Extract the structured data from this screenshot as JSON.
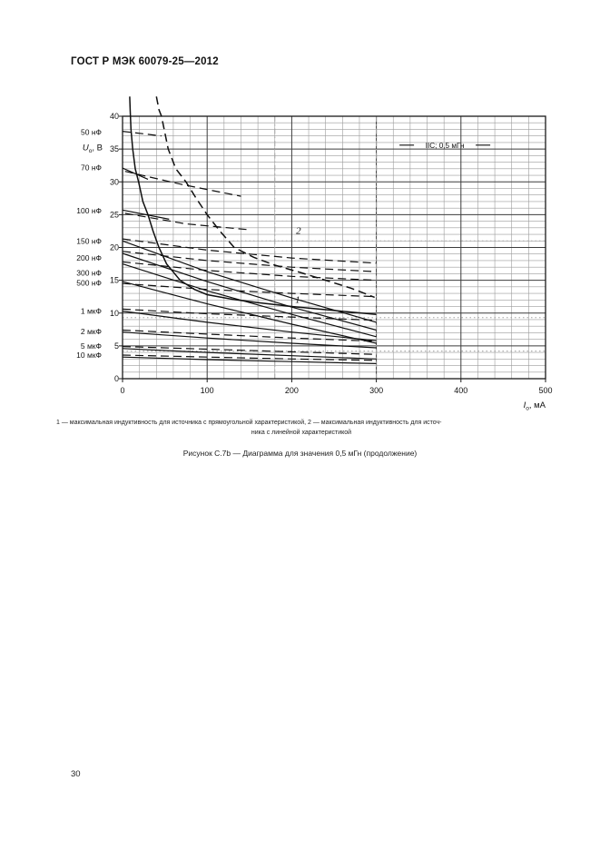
{
  "header": {
    "title": "ГОСТ Р МЭК 60079-25—2012"
  },
  "figure": {
    "note_line1": "1 —  максимальная индуктивность для источника с прямоугольной характеристикой, 2 — максимальная индуктивность для источ-",
    "note_line2": "ника с линейной характеристикой",
    "caption": "Рисунок С.7b — Диаграмма для значения 0,5 мГн (продолжение)"
  },
  "page_number": "30",
  "chart_data": {
    "type": "line",
    "title": "IIC; 0,5 мГн",
    "annotation": "IIC; 0,5 мГн",
    "annotation_pos": {
      "x": 381,
      "y": 35.6
    },
    "xlabel": {
      "symbol": "I",
      "subscript": "о",
      "unit": ", мА"
    },
    "ylabel": {
      "symbol": "U",
      "subscript": "о",
      "unit": ", В"
    },
    "ylabel_v": 35.2,
    "xlim": [
      0,
      500
    ],
    "ylim": [
      0,
      40
    ],
    "x_ticks": [
      0,
      100,
      200,
      300,
      400,
      500
    ],
    "y_ticks": [
      0,
      5,
      10,
      15,
      20,
      25,
      30,
      35,
      40
    ],
    "x_minor_step": 20,
    "y_minor_step": 1,
    "grid": true,
    "reference_lines": {
      "vertical_dashdot_ma": [
        180,
        300
      ],
      "horizontal_dotted_v": [
        21.0,
        9.3,
        4.2
      ]
    },
    "curve_markers": [
      {
        "text": "2",
        "x": 208,
        "y": 22.6
      },
      {
        "text": "1",
        "x": 207,
        "y": 12.1
      }
    ],
    "capacitance_labels": [
      {
        "label": "50 нФ",
        "v": 37.6
      },
      {
        "label": "70 нФ",
        "v": 32.2
      },
      {
        "label": "100 нФ",
        "v": 25.6
      },
      {
        "label": "150 нФ",
        "v": 21.0
      },
      {
        "label": "200 нФ",
        "v": 18.4
      },
      {
        "label": "300 нФ",
        "v": 16.1
      },
      {
        "label": "500 нФ",
        "v": 14.6
      },
      {
        "label": "1 мкФ",
        "v": 10.3
      },
      {
        "label": "2 мкФ",
        "v": 7.2
      },
      {
        "label": "5 мкФ",
        "v": 5.0
      },
      {
        "label": "10 мкФ",
        "v": 3.6
      }
    ],
    "series": [
      {
        "name": "curve-1-max-inductance-rectangular-source",
        "style": "solid",
        "points": [
          [
            8.5,
            43
          ],
          [
            9,
            41
          ],
          [
            10,
            38
          ],
          [
            12,
            35
          ],
          [
            15,
            32
          ],
          [
            19,
            30
          ],
          [
            24,
            27
          ],
          [
            30,
            25
          ],
          [
            36,
            22.5
          ],
          [
            43,
            20
          ],
          [
            52,
            17.5
          ],
          [
            68,
            15
          ],
          [
            85,
            13.6
          ],
          [
            100,
            12.8
          ],
          [
            130,
            12.1
          ],
          [
            160,
            11.6
          ],
          [
            200,
            11.0
          ],
          [
            250,
            10.4
          ],
          [
            300,
            9.8
          ]
        ]
      },
      {
        "name": "curve-2-max-inductance-linear-source",
        "style": "dashed",
        "points": [
          [
            40,
            43
          ],
          [
            43,
            41
          ],
          [
            46,
            40
          ],
          [
            54,
            35
          ],
          [
            63,
            32
          ],
          [
            75,
            30
          ],
          [
            87,
            27.5
          ],
          [
            100,
            25
          ],
          [
            115,
            22.5
          ],
          [
            132,
            20
          ],
          [
            155,
            18.5
          ],
          [
            180,
            17.3
          ],
          [
            210,
            16.2
          ],
          [
            240,
            15.0
          ],
          [
            270,
            13.8
          ],
          [
            298,
            12.4
          ]
        ]
      },
      {
        "name": "cap-50nF-dashed",
        "style": "dashed",
        "points": [
          [
            0,
            37.7
          ],
          [
            46,
            37.0
          ]
        ]
      },
      {
        "name": "cap-70nF-solid",
        "style": "solid",
        "points": [
          [
            0,
            32.1
          ],
          [
            30,
            30.4
          ]
        ]
      },
      {
        "name": "cap-70nF-dashed",
        "style": "dashed",
        "points": [
          [
            3,
            31.6
          ],
          [
            70,
            29.6
          ],
          [
            140,
            27.8
          ]
        ]
      },
      {
        "name": "cap-100nF-solid",
        "style": "solid",
        "points": [
          [
            0,
            25.7
          ],
          [
            55,
            24.3
          ]
        ]
      },
      {
        "name": "cap-100nF-dashed",
        "style": "dashed",
        "points": [
          [
            3,
            25.2
          ],
          [
            75,
            23.6
          ],
          [
            150,
            22.7
          ]
        ]
      },
      {
        "name": "cap-150nF-solid",
        "style": "solid",
        "points": [
          [
            0,
            21.0
          ],
          [
            100,
            16.3
          ],
          [
            200,
            12.3
          ],
          [
            300,
            8.6
          ]
        ]
      },
      {
        "name": "cap-150nF-dashed",
        "style": "dashed",
        "points": [
          [
            0,
            21.3
          ],
          [
            100,
            19.6
          ],
          [
            200,
            18.4
          ],
          [
            300,
            17.6
          ]
        ]
      },
      {
        "name": "cap-200nF-solid",
        "style": "solid",
        "points": [
          [
            0,
            19.1
          ],
          [
            100,
            14.8
          ],
          [
            200,
            10.9
          ],
          [
            300,
            7.4
          ]
        ]
      },
      {
        "name": "cap-200nF-dashed",
        "style": "dashed",
        "points": [
          [
            0,
            19.4
          ],
          [
            100,
            18.0
          ],
          [
            200,
            17.0
          ],
          [
            300,
            16.3
          ]
        ]
      },
      {
        "name": "cap-300nF-solid",
        "style": "solid",
        "points": [
          [
            0,
            17.5
          ],
          [
            100,
            13.4
          ],
          [
            200,
            9.8
          ],
          [
            300,
            6.4
          ]
        ]
      },
      {
        "name": "cap-300nF-dashed",
        "style": "dashed",
        "points": [
          [
            0,
            17.8
          ],
          [
            100,
            16.5
          ],
          [
            200,
            15.6
          ],
          [
            300,
            15.0
          ]
        ]
      },
      {
        "name": "cap-500nF-solid",
        "style": "solid",
        "points": [
          [
            0,
            14.8
          ],
          [
            100,
            11.4
          ],
          [
            200,
            8.3
          ],
          [
            300,
            5.4
          ]
        ]
      },
      {
        "name": "cap-500nF-dashed",
        "style": "dashed",
        "points": [
          [
            0,
            14.5
          ],
          [
            100,
            13.6
          ],
          [
            200,
            13.0
          ],
          [
            300,
            12.5
          ]
        ]
      },
      {
        "name": "cap-1uF-solid",
        "style": "solid",
        "points": [
          [
            0,
            10.3
          ],
          [
            100,
            8.6
          ],
          [
            200,
            7.1
          ],
          [
            300,
            5.8
          ]
        ]
      },
      {
        "name": "cap-1uF-dashed",
        "style": "dashed",
        "points": [
          [
            0,
            10.6
          ],
          [
            100,
            9.9
          ],
          [
            200,
            9.4
          ],
          [
            300,
            8.9
          ]
        ]
      },
      {
        "name": "cap-2uF-solid",
        "style": "solid",
        "points": [
          [
            0,
            7.1
          ],
          [
            100,
            6.2
          ],
          [
            200,
            5.4
          ],
          [
            300,
            4.7
          ]
        ]
      },
      {
        "name": "cap-2uF-dashed",
        "style": "dashed",
        "points": [
          [
            0,
            7.4
          ],
          [
            100,
            6.8
          ],
          [
            200,
            6.2
          ],
          [
            300,
            5.7
          ]
        ]
      },
      {
        "name": "cap-5uF-solid",
        "style": "solid",
        "points": [
          [
            0,
            4.6
          ],
          [
            100,
            4.0
          ],
          [
            200,
            3.5
          ],
          [
            300,
            3.0
          ]
        ]
      },
      {
        "name": "cap-5uF-dashed",
        "style": "dashed",
        "points": [
          [
            0,
            4.9
          ],
          [
            100,
            4.5
          ],
          [
            200,
            4.1
          ],
          [
            300,
            3.7
          ]
        ]
      },
      {
        "name": "cap-10uF-solid",
        "style": "solid",
        "points": [
          [
            0,
            3.3
          ],
          [
            100,
            2.9
          ],
          [
            200,
            2.6
          ],
          [
            300,
            2.3
          ]
        ]
      },
      {
        "name": "cap-10uF-dashed",
        "style": "dashed",
        "points": [
          [
            0,
            3.6
          ],
          [
            100,
            3.3
          ],
          [
            200,
            3.0
          ],
          [
            300,
            2.8
          ]
        ]
      }
    ]
  }
}
